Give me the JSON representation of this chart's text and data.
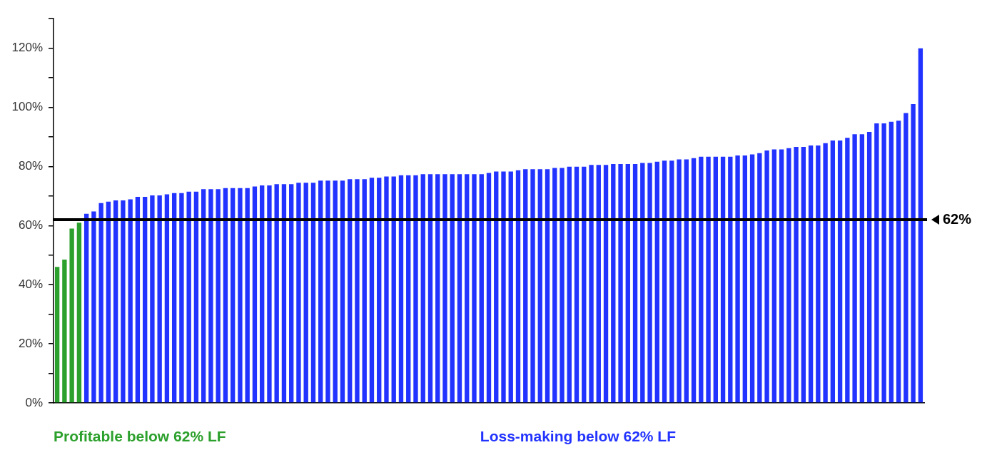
{
  "chart_data": {
    "type": "bar",
    "categories": [
      null,
      null,
      null,
      null,
      null,
      null,
      null,
      null,
      null,
      null,
      null,
      null,
      null,
      null,
      null,
      null,
      null,
      null,
      null,
      null,
      null,
      null,
      null,
      null,
      null,
      null,
      null,
      null,
      null,
      null,
      null,
      null,
      null,
      null,
      null,
      null,
      null,
      null,
      null,
      null,
      null,
      null,
      null,
      null,
      null,
      null,
      null,
      null,
      null,
      null,
      null,
      null,
      null,
      null,
      null,
      null,
      null,
      null,
      null,
      null,
      null,
      null,
      null,
      null,
      null,
      null,
      null,
      null,
      null,
      null,
      null,
      null,
      null,
      null,
      null,
      null,
      null,
      null,
      null,
      null,
      null,
      null,
      null,
      null,
      null,
      null,
      null,
      null,
      null,
      null,
      null,
      null,
      null,
      null,
      null,
      null,
      null,
      null,
      null,
      null,
      null,
      null,
      null,
      null,
      null,
      null,
      null,
      null,
      null,
      null,
      null,
      null,
      null,
      null,
      null,
      null,
      null,
      null,
      null
    ],
    "series": [
      {
        "color": "#2ca02c",
        "values": [
          46,
          48.5,
          59,
          61,
          null,
          null,
          null,
          null,
          null,
          null,
          null,
          null,
          null,
          null,
          null,
          null,
          null,
          null,
          null,
          null,
          null,
          null,
          null,
          null,
          null,
          null,
          null,
          null,
          null,
          null,
          null,
          null,
          null,
          null,
          null,
          null,
          null,
          null,
          null,
          null,
          null,
          null,
          null,
          null,
          null,
          null,
          null,
          null,
          null,
          null,
          null,
          null,
          null,
          null,
          null,
          null,
          null,
          null,
          null,
          null,
          null,
          null,
          null,
          null,
          null,
          null,
          null,
          null,
          null,
          null,
          null,
          null,
          null,
          null,
          null,
          null,
          null,
          null,
          null,
          null,
          null,
          null,
          null,
          null,
          null,
          null,
          null,
          null,
          null,
          null,
          null,
          null,
          null,
          null,
          null,
          null,
          null,
          null,
          null,
          null,
          null,
          null,
          null,
          null,
          null,
          null,
          null,
          null,
          null,
          null,
          null,
          null,
          null,
          null,
          null,
          null,
          null,
          null,
          null
        ]
      },
      {
        "color": "#2233ff",
        "values": [
          null,
          null,
          null,
          null,
          64,
          64.8,
          67.6,
          68.1,
          68.5,
          68.5,
          68.9,
          69.7,
          69.7,
          70.2,
          70.2,
          70.6,
          71,
          71,
          71.5,
          71.5,
          72.3,
          72.3,
          72.3,
          72.7,
          72.7,
          72.7,
          72.7,
          73.2,
          73.6,
          73.6,
          74,
          74,
          74,
          74.5,
          74.5,
          74.5,
          75.2,
          75.2,
          75.2,
          75.2,
          75.7,
          75.7,
          75.7,
          76.2,
          76.2,
          76.6,
          76.6,
          77,
          77,
          77,
          77.4,
          77.4,
          77.4,
          77.4,
          77.4,
          77.4,
          77.4,
          77.4,
          77.4,
          77.8,
          78.3,
          78.3,
          78.3,
          78.7,
          79.1,
          79.1,
          79.1,
          79.1,
          79.5,
          79.5,
          79.9,
          79.9,
          79.9,
          80.5,
          80.5,
          80.5,
          80.8,
          80.8,
          80.8,
          80.8,
          81.2,
          81.2,
          81.6,
          82,
          82,
          82.4,
          82.4,
          82.8,
          83.3,
          83.3,
          83.3,
          83.3,
          83.3,
          83.7,
          83.7,
          84.1,
          84.5,
          85.4,
          85.8,
          85.8,
          86.2,
          86.6,
          86.6,
          87.1,
          87.1,
          87.9,
          88.8,
          88.8,
          89.7,
          90.9,
          90.9,
          91.7,
          94.6,
          94.6,
          95.1,
          95.5,
          98.1,
          101.1,
          120
        ]
      }
    ],
    "ylim": [
      0,
      130
    ],
    "yticks": [
      {
        "value": 0,
        "label": "0%"
      },
      {
        "value": 10,
        "label": null
      },
      {
        "value": 20,
        "label": "20%"
      },
      {
        "value": 30,
        "label": null
      },
      {
        "value": 40,
        "label": "40%"
      },
      {
        "value": 50,
        "label": null
      },
      {
        "value": 60,
        "label": "60%"
      },
      {
        "value": 70,
        "label": null
      },
      {
        "value": 80,
        "label": "80%"
      },
      {
        "value": 90,
        "label": null
      },
      {
        "value": 100,
        "label": "100%"
      },
      {
        "value": 110,
        "label": null
      },
      {
        "value": 120,
        "label": "120%"
      },
      {
        "value": 130,
        "label": null
      }
    ],
    "ref_lines": [
      {
        "axis": "y",
        "value": 62,
        "label": "62%",
        "color": "#000000"
      }
    ],
    "annotations": [
      "Profitable below 62% LF",
      "Loss-making below 62% LF"
    ],
    "grid": false,
    "legend": false
  }
}
